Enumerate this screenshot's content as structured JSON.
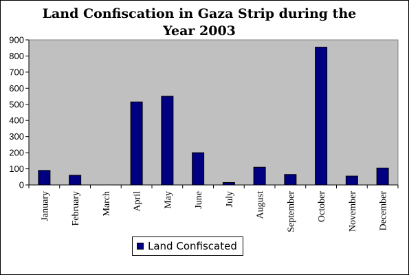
{
  "chart_data": {
    "type": "bar",
    "title_lines": [
      "Land Confiscation in Gaza Strip during the",
      "Year 2003"
    ],
    "categories": [
      "January",
      "February",
      "March",
      "April",
      "May",
      "June",
      "July",
      "August",
      "September",
      "October",
      "November",
      "December"
    ],
    "series": [
      {
        "name": "Land Confiscated",
        "values": [
          90,
          60,
          0,
          515,
          550,
          200,
          15,
          110,
          65,
          855,
          55,
          105
        ]
      }
    ],
    "ylim": [
      0,
      900
    ],
    "yticks": [
      0,
      100,
      200,
      300,
      400,
      500,
      600,
      700,
      800,
      900
    ],
    "grid": false,
    "legend_position": "bottom",
    "colors": {
      "bar": "#000080",
      "plot_background": "#c0c0c0",
      "axis": "#000000"
    }
  }
}
